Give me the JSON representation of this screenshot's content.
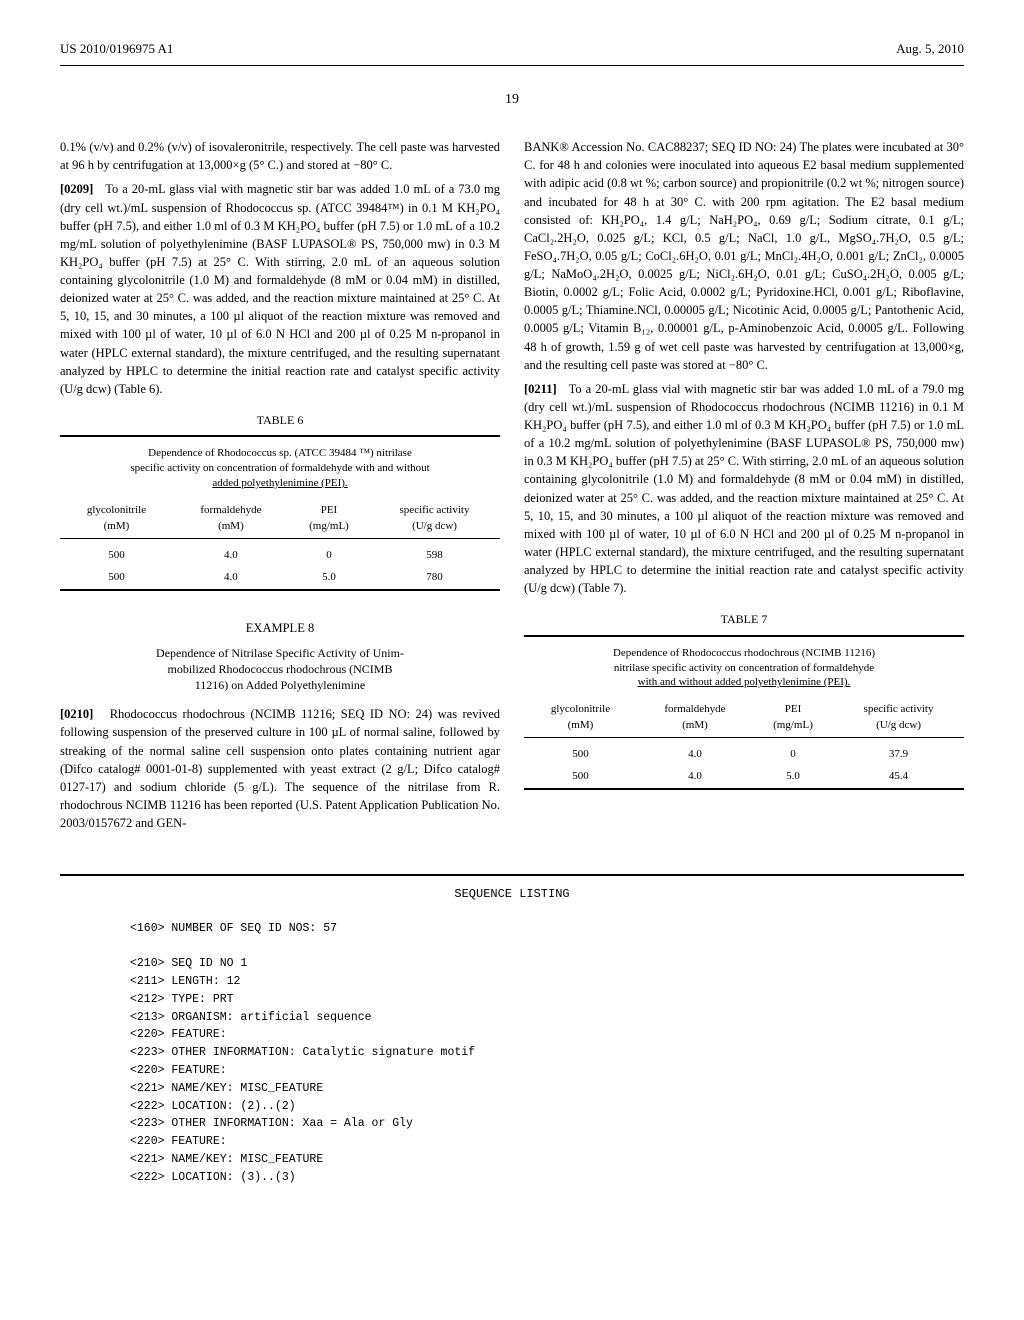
{
  "header": {
    "left": "US 2010/0196975 A1",
    "right": "Aug. 5, 2010"
  },
  "page_number": "19",
  "left_column": {
    "intro_tail": "0.1% (v/v) and 0.2% (v/v) of isovaleronitrile, respectively. The cell paste was harvested at 96 h by centrifugation at 13,000×g (5° C.) and stored at −80° C.",
    "p0209_ref": "[0209]",
    "p0209_body": "To a 20-mL glass vial with magnetic stir bar was added 1.0 mL of a 73.0 mg (dry cell wt.)/mL suspension of Rhodococcus sp. (ATCC 39484™) in 0.1 M KH₂PO₄ buffer (pH 7.5), and either 1.0 ml of 0.3 M KH₂PO₄ buffer (pH 7.5) or 1.0 mL of a 10.2 mg/mL solution of polyethylenimine (BASF LUPASOL® PS, 750,000 mw) in 0.3 M KH₂PO₄ buffer (pH 7.5) at 25° C. With stirring, 2.0 mL of an aqueous solution containing glycolonitrile (1.0 M) and formaldehyde (8 mM or 0.04 mM) in distilled, deionized water at 25° C. was added, and the reaction mixture maintained at 25° C. At 5, 10, 15, and 30 minutes, a 100 µl aliquot of the reaction mixture was removed and mixed with 100 µl of water, 10 µl of 6.0 N HCl and 200 µl of 0.25 M n-propanol in water (HPLC external standard), the mixture centrifuged, and the resulting supernatant analyzed by HPLC to determine the initial reaction rate and catalyst specific activity (U/g dcw) (Table 6).",
    "table6": {
      "caption": "TABLE 6",
      "title_lines": [
        "Dependence of Rhodococcus sp. (ATCC 39484 ™) nitrilase",
        "specific activity on concentration of formaldehyde with and without",
        "added polyethylenimine (PEI)."
      ],
      "columns": [
        {
          "l1": "glycolonitrile",
          "l2": "(mM)"
        },
        {
          "l1": "formaldehyde",
          "l2": "(mM)"
        },
        {
          "l1": "PEI",
          "l2": "(mg/mL)"
        },
        {
          "l1": "specific activity",
          "l2": "(U/g dcw)"
        }
      ],
      "rows": [
        [
          "500",
          "4.0",
          "0",
          "598"
        ],
        [
          "500",
          "4.0",
          "5.0",
          "780"
        ]
      ]
    },
    "example8": {
      "head": "EXAMPLE 8",
      "sub_lines": [
        "Dependence of Nitrilase Specific Activity of Unim-",
        "mobilized Rhodococcus rhodochrous (NCIMB",
        "11216) on Added Polyethylenimine"
      ]
    },
    "p0210_ref": "[0210]",
    "p0210_body": "Rhodococcus rhodochrous (NCIMB 11216; SEQ ID NO: 24) was revived following suspension of the preserved culture in 100 µL of normal saline, followed by streaking of the normal saline cell suspension onto plates containing nutrient agar (Difco catalog# 0001-01-8) supplemented with yeast extract (2 g/L; Difco catalog# 0127-17) and sodium chloride (5 g/L). The sequence of the nitrilase from R. rhodochrous NCIMB 11216 has been reported (U.S. Patent Application Publication No. 2003/0157672 and GEN-"
  },
  "right_column": {
    "p_top": "BANK® Accession No. CAC88237; SEQ ID NO: 24) The plates were incubated at 30° C. for 48 h and colonies were inoculated into aqueous E2 basal medium supplemented with adipic acid (0.8 wt %; carbon source) and propionitrile (0.2 wt %; nitrogen source) and incubated for 48 h at 30° C. with 200 rpm agitation. The E2 basal medium consisted of: KH₂PO₄, 1.4 g/L; NaH₂PO₄, 0.69 g/L; Sodium citrate, 0.1 g/L; CaCl₂.2H₂O, 0.025 g/L; KCl, 0.5 g/L; NaCl, 1.0 g/L, MgSO₄.7H₂O, 0.5 g/L; FeSO₄.7H₂O, 0.05 g/L; CoCl₂.6H₂O, 0.01 g/L; MnCl₂.4H₂O, 0.001 g/L; ZnCl₂, 0.0005 g/L; NaMoO₄.2H₂O, 0.0025 g/L; NiCl₂.6H₂O, 0.01 g/L; CuSO₄.2H₂O, 0.005 g/L; Biotin, 0.0002 g/L; Folic Acid, 0.0002 g/L; Pyridoxine.HCl, 0.001 g/L; Riboflavine, 0.0005 g/L; Thiamine.NCl, 0.00005 g/L; Nicotinic Acid, 0.0005 g/L; Pantothenic Acid, 0.0005 g/L; Vitamin B₁₂, 0.00001 g/L, p-Aminobenzoic Acid, 0.0005 g/L. Following 48 h of growth, 1.59 g of wet cell paste was harvested by centrifugation at 13,000×g, and the resulting cell paste was stored at −80° C.",
    "p0211_ref": "[0211]",
    "p0211_body": "To a 20-mL glass vial with magnetic stir bar was added 1.0 mL of a 79.0 mg (dry cell wt.)/mL suspension of Rhodococcus rhodochrous (NCIMB 11216) in 0.1 M KH₂PO₄ buffer (pH 7.5), and either 1.0 ml of 0.3 M KH₂PO₄ buffer (pH 7.5) or 1.0 mL of a 10.2 mg/mL solution of polyethylenimine (BASF LUPASOL® PS, 750,000 mw) in 0.3 M KH₂PO₄ buffer (pH 7.5) at 25° C. With stirring, 2.0 mL of an aqueous solution containing glycolonitrile (1.0 M) and formaldehyde (8 mM or 0.04 mM) in distilled, deionized water at 25° C. was added, and the reaction mixture maintained at 25° C. At 5, 10, 15, and 30 minutes, a 100 µl aliquot of the reaction mixture was removed and mixed with 100 µl of water, 10 µl of 6.0 N HCl and 200 µl of 0.25 M n-propanol in water (HPLC external standard), the mixture centrifuged, and the resulting supernatant analyzed by HPLC to determine the initial reaction rate and catalyst specific activity (U/g dcw) (Table 7).",
    "table7": {
      "caption": "TABLE 7",
      "title_lines": [
        "Dependence of Rhodococcus rhodochrous (NCIMB 11216)",
        "nitrilase specific activity on concentration of formaldehyde",
        "with and without added polyethylenimine (PEI)."
      ],
      "columns": [
        {
          "l1": "glycolonitrile",
          "l2": "(mM)"
        },
        {
          "l1": "formaldehyde",
          "l2": "(mM)"
        },
        {
          "l1": "PEI",
          "l2": "(mg/mL)"
        },
        {
          "l1": "specific activity",
          "l2": "(U/g dcw)"
        }
      ],
      "rows": [
        [
          "500",
          "4.0",
          "0",
          "37.9"
        ],
        [
          "500",
          "4.0",
          "5.0",
          "45.4"
        ]
      ]
    }
  },
  "sequence": {
    "title": "SEQUENCE LISTING",
    "lines": [
      "<160> NUMBER OF SEQ ID NOS: 57",
      "",
      "<210> SEQ ID NO 1",
      "<211> LENGTH: 12",
      "<212> TYPE: PRT",
      "<213> ORGANISM: artificial sequence",
      "<220> FEATURE:",
      "<223> OTHER INFORMATION: Catalytic signature motif",
      "<220> FEATURE:",
      "<221> NAME/KEY: MISC_FEATURE",
      "<222> LOCATION: (2)..(2)",
      "<223> OTHER INFORMATION: Xaa = Ala or Gly",
      "<220> FEATURE:",
      "<221> NAME/KEY: MISC_FEATURE",
      "<222> LOCATION: (3)..(3)"
    ]
  }
}
